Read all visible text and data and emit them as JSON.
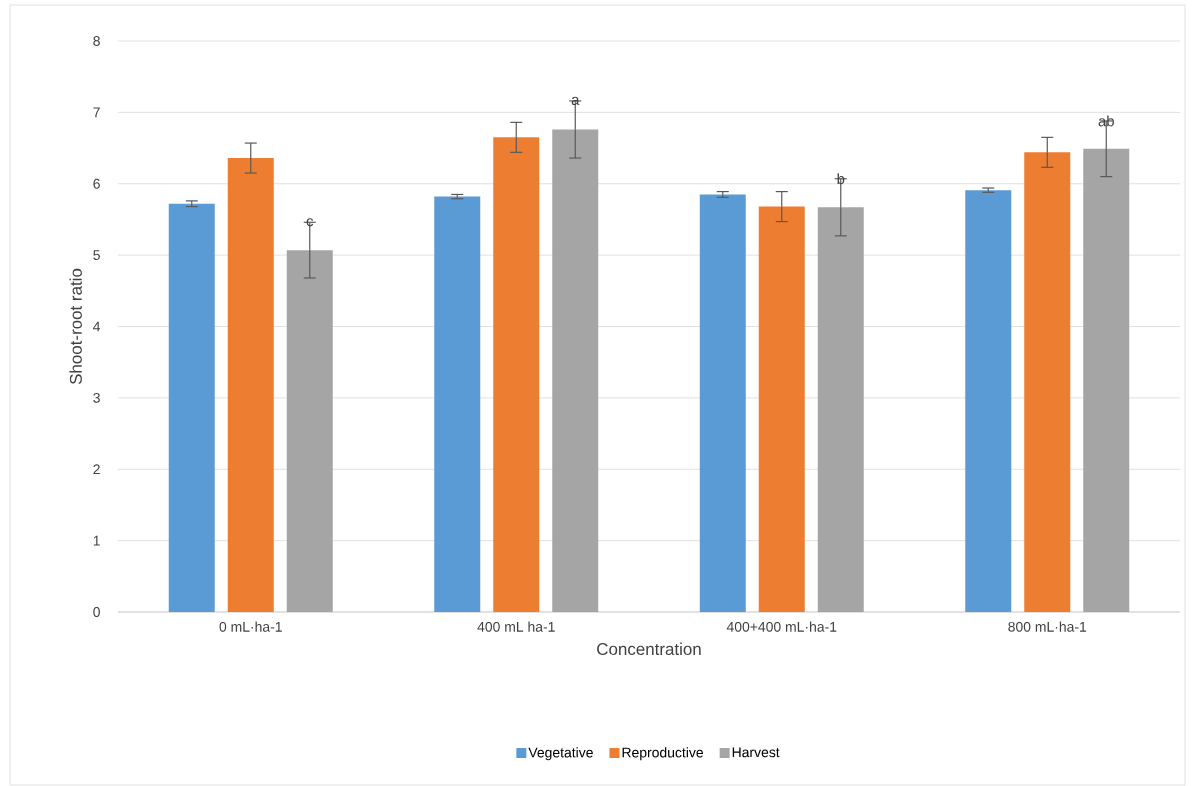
{
  "chart_data": {
    "type": "bar",
    "xlabel": "Concentration",
    "ylabel": "Shoot-root ratio",
    "categories": [
      "0 mL·ha-1",
      "400 mL ha-1",
      "400+400 mL·ha-1",
      "800 mL·ha-1"
    ],
    "series": [
      {
        "name": "Vegetative",
        "color": "#5b9bd5",
        "values": [
          5.72,
          5.82,
          5.85,
          5.91
        ],
        "errors": [
          0.04,
          0.03,
          0.04,
          0.03
        ]
      },
      {
        "name": "Reproductive",
        "color": "#ed7d31",
        "values": [
          6.36,
          6.65,
          5.68,
          6.44
        ],
        "errors": [
          0.21,
          0.21,
          0.21,
          0.21
        ]
      },
      {
        "name": "Harvest",
        "color": "#a5a5a5",
        "values": [
          5.07,
          6.76,
          5.67,
          6.49
        ],
        "errors": [
          0.39,
          0.4,
          0.4,
          0.39
        ]
      }
    ],
    "annotations": [
      "c",
      "a",
      "b",
      "ab"
    ],
    "ylim": [
      0,
      8
    ],
    "yticks": [
      0,
      1,
      2,
      3,
      4,
      5,
      6,
      7,
      8
    ],
    "grid": "y",
    "legend": "bottom"
  }
}
